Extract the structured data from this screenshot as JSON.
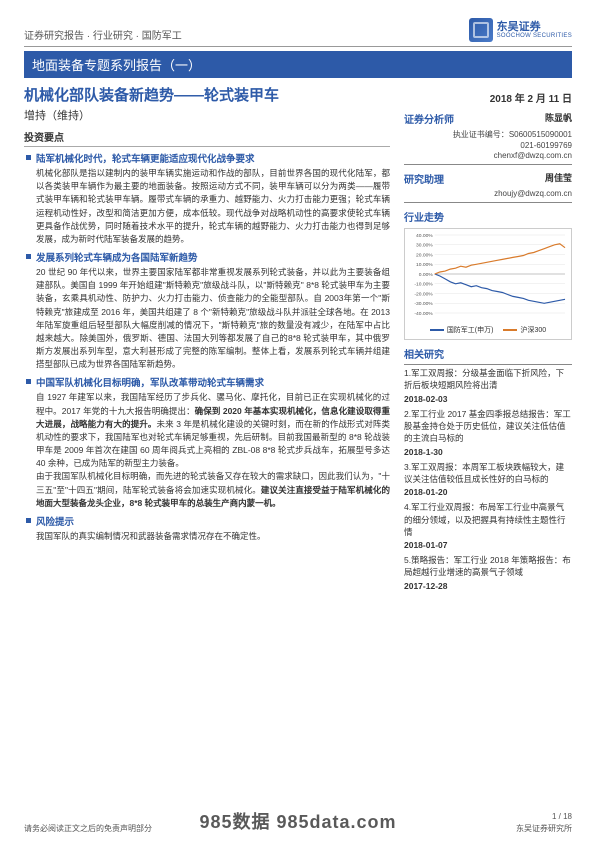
{
  "header": {
    "breadcrumb": "证券研究报告 · 行业研究 · 国防军工",
    "logo_cn": "东吴证券",
    "logo_en": "SOOCHOW SECURITIES",
    "banner": "地面装备专题系列报告（一）"
  },
  "left": {
    "headline": "机械化部队装备新趋势——轮式装甲车",
    "rating": "增持（维持）",
    "section_label": "投资要点",
    "bullets": [
      {
        "title": "陆军机械化时代，轮式车辆更能适应现代化战争要求",
        "body": "机械化部队是指以建制内的装甲车辆实施运动和作战的部队，目前世界各国的现代化陆军，都以各类装甲车辆作为最主要的地面装备。按照运动方式不同，装甲车辆可以分为两类——履带式装甲车辆和轮式装甲车辆。履带式车辆的承重力、越野能力、火力打击能力更强；轮式车辆运程机动性好，改型和简洁更加方便，成本低较。现代战争对战略机动性的高要求使轮式车辆更具备作战优势，同时随着技术水平的提升，轮式车辆的越野能力、火力打击能力也得到足够发展，成为新时代陆军装备发展的趋势。"
      },
      {
        "title": "发展系列轮式车辆成为各国陆军新趋势",
        "body": "20 世纪 90 年代以来，世界主要国家陆军都非常重视发展系列轮式装备，并以此为主要装备组建部队。美国自 1999 年开始组建\"斯特赖克\"旅级战斗队，以\"斯特赖克\" 8*8 轮式装甲车为主要装备，玄乘具机动性、防护力、火力打击能力、侦查能力的全能型部队。自 2003年第一个\"斯特赖克\"旅建成至 2016 年，美国共组建了 8 个\"新特赖克\"旅级战斗队并派驻全球各地。在 2013 年陆军旋重组后轻型部队大幅度削减的情况下，\"斯特赖克\"旅的数量没有减少，在陆军中占比越来越大。除美国外，俄罗斯、德国、法国大列等都发展了自己的8*8 轮式装甲车，其中俄罗斯方发展出系列车型，意大利甚形成了完整的陈军编制。整体上看，发展系列轮式车辆并组建搭型部队已成为世界各国陆军新趋势。"
      },
      {
        "title": "中国军队机械化目标明确，军队改革带动轮式车辆需求",
        "body_html": "自 1927 年建军以来，我国陆军经历了步兵化、骡马化、摩托化，目前已正在实现机械化的过程中。2017 年党的十九大报告明确提出：<b>确保到 2020 年基本实现机械化，信息化建设取得重大进展，战略能力有大的提升。</b>未来 3 年是机械化建设的关键时刻，而在新的作战形式对阵类机动性的要求下，我国陆军也对轮式车辆足够重视，先后研制。目前我国最新型的 8*8 轮战装甲车是 2009 年首次在建国 60 周年阅兵式上亮相的 ZBL-08 8*8 轮式步兵战车，拓展型号多达 40 余种，已成为陆军的新型主力装备。<br>由于我国军队机械化目标明确，而先进的轮式装备又存在较大的需求缺口，因此我们认为，\"十三五\"至\"十四五\"期间，陆军轮式装备将会加速实现机械化。<b>建议关注直接受益于陆军机械化的地面大型装备龙头企业，8*8 轮式装甲车的总装生产商内蒙一机。</b>"
      },
      {
        "title": "风险提示",
        "body": "我国军队的真实编制情况和武器装备需求情况存在不确定性。"
      }
    ]
  },
  "right": {
    "date": "2018 年 2 月 11 日",
    "analyst_h": "证券分析师",
    "analyst_name": "陈显帆",
    "cert_label": "执业证书编号：",
    "cert_no": "S0600515090001",
    "phone": "021-60199769",
    "email1": "chenxf@dwzq.com.cn",
    "assist_h": "研究助理",
    "assist_name": "周佳莹",
    "email2": "zhoujy@dwzq.com.cn",
    "trend_h": "行业走势",
    "chart": {
      "y_ticks": [
        "40.00%",
        "30.00%",
        "20.00%",
        "10.00%",
        "0.00%",
        "-10.00%",
        "-20.00%",
        "-30.00%",
        "-40.00%"
      ],
      "series": [
        {
          "name": "国防军工(申万)",
          "color": "#2d5aa8",
          "points": [
            0,
            -2,
            -5,
            -8,
            -10,
            -9,
            -11,
            -13,
            -12,
            -14,
            -15,
            -17,
            -18,
            -19,
            -21,
            -23,
            -24,
            -25,
            -27,
            -28,
            -29,
            -30,
            -29,
            -28,
            -27,
            -26
          ]
        },
        {
          "name": "沪深300",
          "color": "#d97b2b",
          "points": [
            0,
            2,
            3,
            5,
            6,
            8,
            7,
            9,
            10,
            11,
            12,
            13,
            14,
            15,
            16,
            17,
            18,
            19,
            21,
            22,
            24,
            26,
            28,
            30,
            31,
            27
          ]
        }
      ],
      "y_min": -40,
      "y_max": 40
    },
    "related_h": "相关研究",
    "related": [
      {
        "text": "1.军工双周报：分级基金面临下折风险，下折后板块短期风险将出清",
        "date": "2018-02-03"
      },
      {
        "text": "2.军工行业 2017 基金四季报总结报告：军工股基金持仓处于历史低位，建议关注低估值的主流白马标的",
        "date": "2018-1-30"
      },
      {
        "text": "3.军工双周报：本周军工板块跌幅较大，建议关注估值较低且成长性好的白马标的",
        "date": "2018-01-20"
      },
      {
        "text": "4.军工行业双周报：布局军工行业中高景气的细分领域，以及把握具有持续性主题性行情",
        "date": "2018-01-07"
      },
      {
        "text": "5.策略报告：军工行业 2018 年策略报告：布局超越行业增速的高景气子领域",
        "date": "2017-12-28"
      }
    ]
  },
  "footer": {
    "disclaimer": "请务必阅读正文之后的免责声明部分",
    "source": "东吴证券研究所",
    "page": "1 / 18"
  },
  "watermark": "985数据  985data.com"
}
